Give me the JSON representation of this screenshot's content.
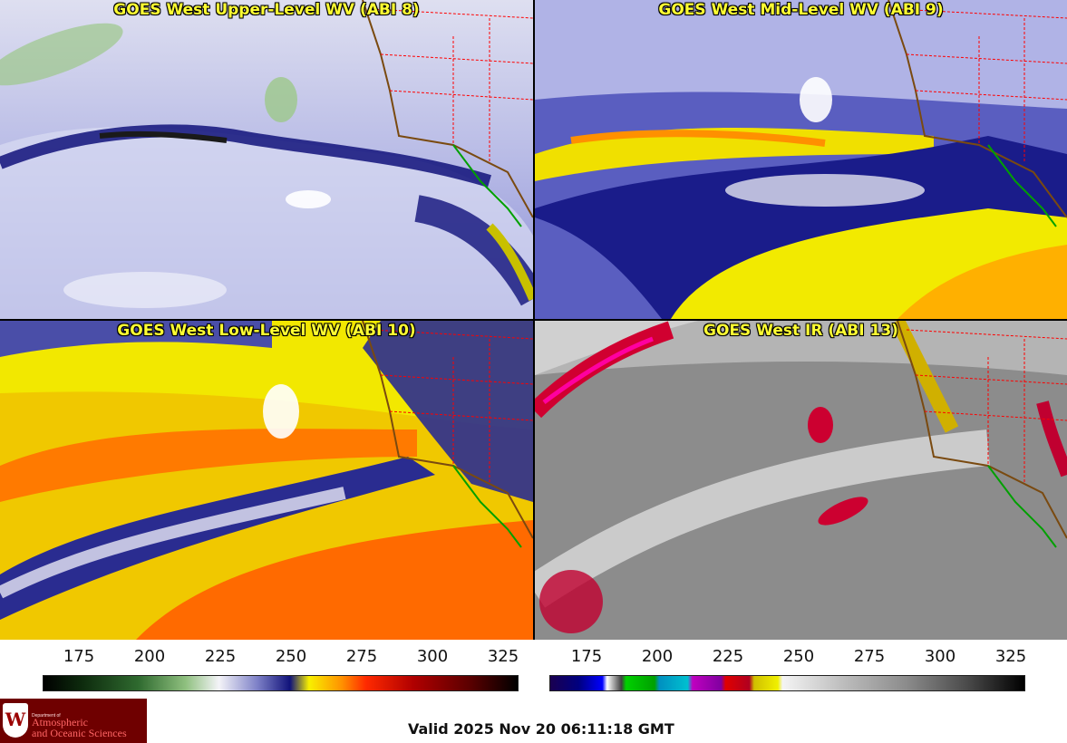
{
  "panels": [
    {
      "title": "GOES West Upper-Level WV (ABI 8)"
    },
    {
      "title": "GOES West Mid-Level WV (ABI 9)"
    },
    {
      "title": "GOES West Low-Level WV (ABI 10)"
    },
    {
      "title": "GOES West IR (ABI 13)"
    }
  ],
  "colorbar_left": {
    "ticks": [
      "175",
      "200",
      "225",
      "250",
      "275",
      "300",
      "325"
    ],
    "colors": [
      "#000000",
      "#0d2a0d",
      "#2f6a2f",
      "#8fc07f",
      "#f4f4f8",
      "#7f82c8",
      "#10127a",
      "#f8f000",
      "#ff9000",
      "#ff2a00",
      "#b00000",
      "#5a0000",
      "#000000"
    ]
  },
  "colorbar_right": {
    "ticks": [
      "175",
      "200",
      "225",
      "250",
      "275",
      "300",
      "325"
    ]
  },
  "valid_time": "Valid 2025 Nov 20 06:11:18 GMT",
  "logo": {
    "dept": "Department of",
    "line1": "Atmospheric",
    "line2": "and Oceanic Sciences",
    "seal": "W"
  }
}
